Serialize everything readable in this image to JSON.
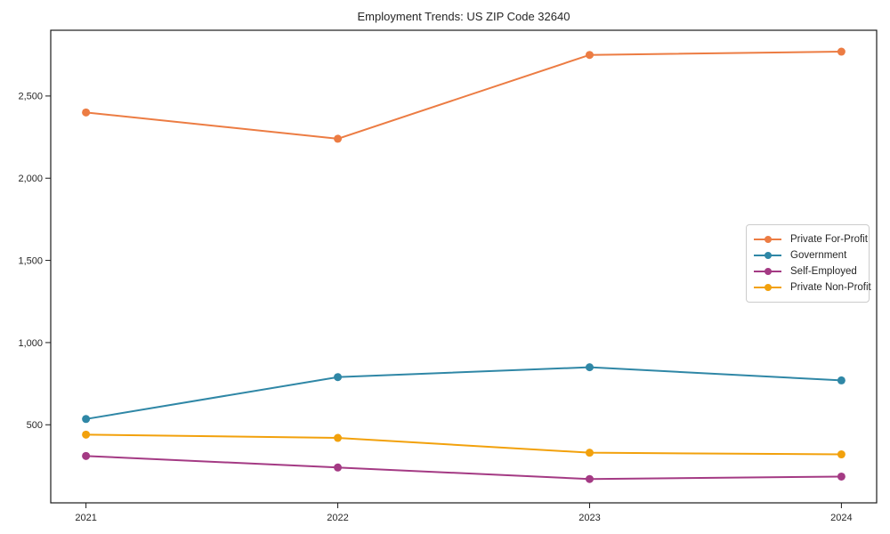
{
  "chart_data": {
    "type": "line",
    "title": "Employment Trends: US ZIP Code 32640",
    "categories": [
      "2021",
      "2022",
      "2023",
      "2024"
    ],
    "x": [
      2021,
      2022,
      2023,
      2024
    ],
    "series": [
      {
        "name": "Private For-Profit",
        "color": "#ec7c43",
        "values": [
          2400,
          2240,
          2750,
          2770
        ]
      },
      {
        "name": "Government",
        "color": "#2f87a6",
        "values": [
          535,
          790,
          850,
          770
        ]
      },
      {
        "name": "Self-Employed",
        "color": "#a43a84",
        "values": [
          310,
          240,
          170,
          185
        ]
      },
      {
        "name": "Private Non-Profit",
        "color": "#f2a10c",
        "values": [
          440,
          420,
          330,
          320
        ]
      }
    ],
    "xlabel": "",
    "ylabel": "",
    "xlim": [
      2020.86,
      2024.14
    ],
    "ylim": [
      25,
      2900
    ],
    "yticks": [
      500,
      1000,
      1500,
      2000,
      2500
    ],
    "ytick_labels": [
      "500",
      "1,000",
      "1,500",
      "2,000",
      "2,500"
    ],
    "grid": false,
    "legend_position": "center-right",
    "marker": "circle",
    "axis_color": "#1a1a1a",
    "tick_label_color": "#262626"
  }
}
